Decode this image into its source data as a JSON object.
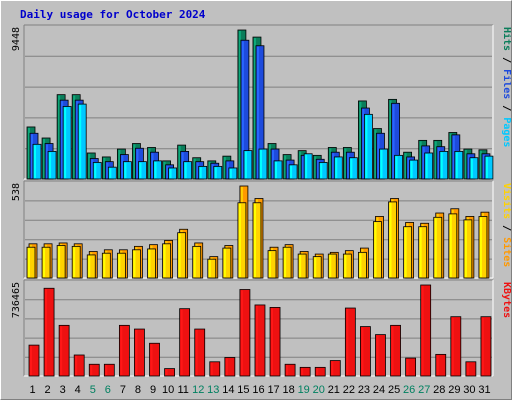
{
  "title": "Daily usage for October 2024",
  "colors": {
    "pages": "#00c8ff",
    "files": "#1e4bdc",
    "hits": "#0a7d5a",
    "sites": "#ffd200",
    "visits": "#ff9900",
    "kbytes": "#ee1111",
    "weekend_label": "#008060",
    "weekday_label": "#000000"
  },
  "chart_data": [
    {
      "type": "bar",
      "name": "hits-files-pages",
      "categories": [
        "1",
        "2",
        "3",
        "4",
        "5",
        "6",
        "7",
        "8",
        "9",
        "10",
        "11",
        "12",
        "13",
        "14",
        "15",
        "16",
        "17",
        "18",
        "19",
        "20",
        "21",
        "22",
        "23",
        "24",
        "25",
        "26",
        "27",
        "28",
        "29",
        "30",
        "31"
      ],
      "ymax_label": "9448",
      "ylim": [
        0,
        9448
      ],
      "series": [
        {
          "name": "Hits",
          "values": [
            3300,
            2600,
            5350,
            5350,
            1650,
            1400,
            1900,
            2250,
            2000,
            1150,
            2150,
            1350,
            1150,
            1450,
            9448,
            9000,
            2250,
            1550,
            1800,
            1500,
            2000,
            2000,
            4950,
            3200,
            5050,
            1700,
            2450,
            2450,
            2950,
            1900,
            1850
          ]
        },
        {
          "name": "Files",
          "values": [
            2900,
            2250,
            5000,
            5000,
            1300,
            1100,
            1550,
            1950,
            1700,
            900,
            1750,
            1100,
            1000,
            1150,
            8800,
            8450,
            1900,
            1200,
            1500,
            1250,
            1700,
            1700,
            4500,
            2900,
            4800,
            1400,
            2100,
            2050,
            2800,
            1600,
            1600
          ]
        },
        {
          "name": "Pages",
          "values": [
            2200,
            1750,
            4600,
            4750,
            1050,
            750,
            1100,
            1100,
            1150,
            700,
            1100,
            800,
            800,
            700,
            1800,
            1900,
            1150,
            900,
            1600,
            1050,
            1400,
            1350,
            4100,
            1900,
            1500,
            1200,
            1650,
            1750,
            1750,
            1350,
            1450
          ]
        }
      ],
      "right_label": [
        "Pages",
        "Files",
        "Hits"
      ]
    },
    {
      "type": "bar",
      "name": "visits-sites",
      "categories": [
        "1",
        "2",
        "3",
        "4",
        "5",
        "6",
        "7",
        "8",
        "9",
        "10",
        "11",
        "12",
        "13",
        "14",
        "15",
        "16",
        "17",
        "18",
        "19",
        "20",
        "21",
        "22",
        "23",
        "24",
        "25",
        "26",
        "27",
        "28",
        "29",
        "30",
        "31"
      ],
      "ymax_label": "538",
      "ylim": [
        0,
        538
      ],
      "series": [
        {
          "name": "Visits",
          "values": [
            200,
            200,
            205,
            200,
            155,
            165,
            165,
            185,
            195,
            220,
            285,
            205,
            125,
            190,
            538,
            465,
            180,
            195,
            155,
            140,
            150,
            160,
            175,
            360,
            465,
            325,
            320,
            380,
            405,
            360,
            385
          ]
        },
        {
          "name": "Sites",
          "values": [
            180,
            180,
            190,
            185,
            135,
            145,
            145,
            165,
            170,
            200,
            265,
            185,
            110,
            175,
            440,
            440,
            160,
            180,
            140,
            125,
            140,
            140,
            150,
            330,
            445,
            300,
            300,
            355,
            375,
            340,
            360
          ]
        }
      ],
      "right_label": [
        "Sites",
        "Visits"
      ]
    },
    {
      "type": "bar",
      "name": "kbytes",
      "categories": [
        "1",
        "2",
        "3",
        "4",
        "5",
        "6",
        "7",
        "8",
        "9",
        "10",
        "11",
        "12",
        "13",
        "14",
        "15",
        "16",
        "17",
        "18",
        "19",
        "20",
        "21",
        "22",
        "23",
        "24",
        "25",
        "26",
        "27",
        "28",
        "29",
        "30",
        "31"
      ],
      "ymax_label": "736465",
      "ylim": [
        0,
        736465
      ],
      "series": [
        {
          "name": "KBytes",
          "values": [
            250000,
            710000,
            410000,
            170000,
            95000,
            95000,
            410000,
            380000,
            265000,
            60000,
            545000,
            380000,
            115000,
            150000,
            700000,
            575000,
            555000,
            95000,
            70000,
            70000,
            125000,
            550000,
            400000,
            335000,
            410000,
            145000,
            736465,
            175000,
            480000,
            115000,
            480000
          ]
        }
      ],
      "right_label": [
        "KBytes"
      ]
    }
  ],
  "weekend_days": [
    "5",
    "6",
    "12",
    "13",
    "19",
    "20",
    "26",
    "27"
  ]
}
